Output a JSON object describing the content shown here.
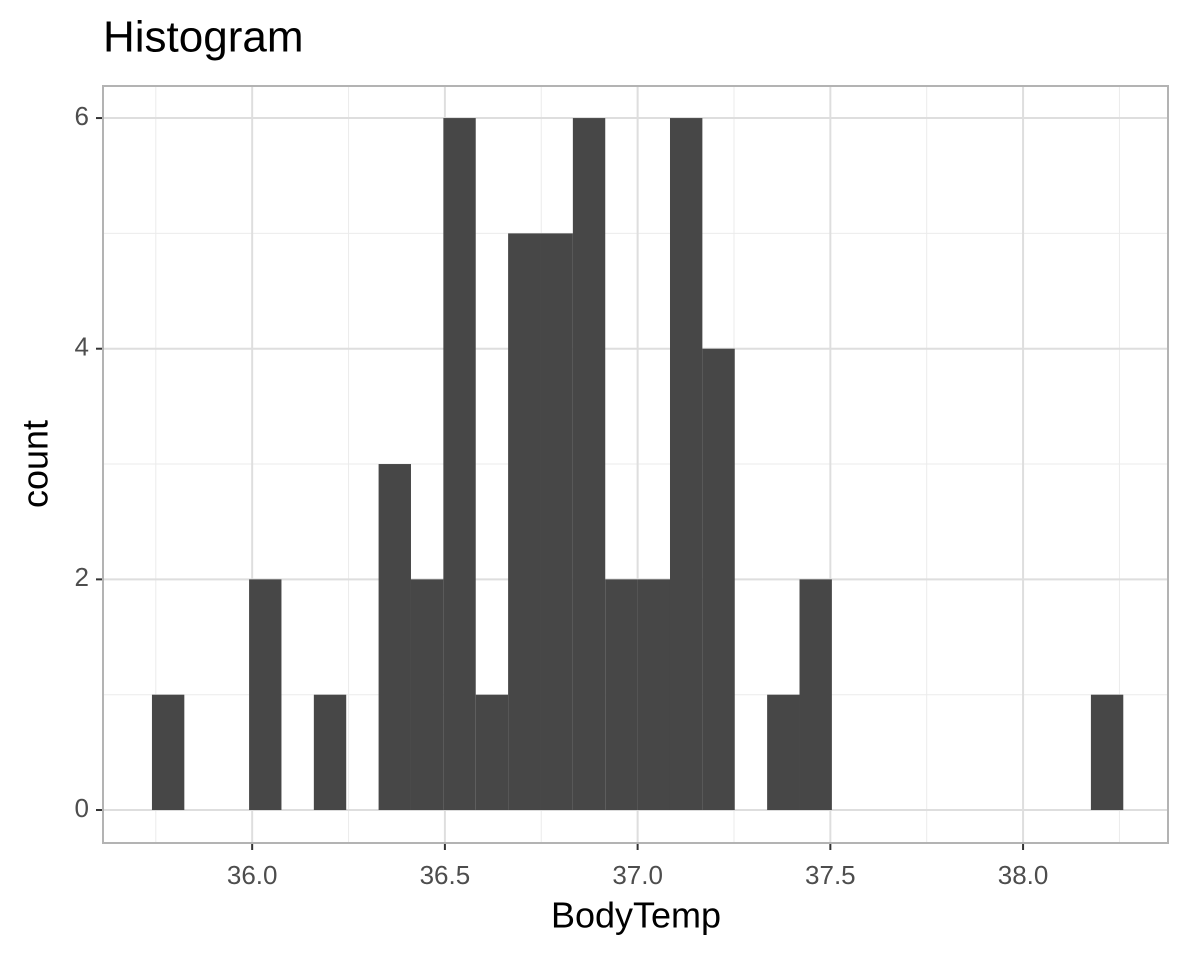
{
  "chart_data": {
    "type": "histogram",
    "title": "Histogram",
    "x_label": "BodyTemp",
    "y_label": "count",
    "bins": [
      35.74,
      35.824,
      35.908,
      35.992,
      36.076,
      36.16,
      36.244,
      36.328,
      36.412,
      36.496,
      36.58,
      36.664,
      36.748,
      36.832,
      36.916,
      37.0,
      37.084,
      37.168,
      37.252,
      37.336,
      37.42,
      37.504,
      37.588,
      37.672,
      37.756,
      37.84,
      37.924,
      38.008,
      38.092,
      38.176,
      38.26
    ],
    "values": [
      1,
      0,
      0,
      2,
      0,
      1,
      0,
      3,
      2,
      6,
      1,
      5,
      5,
      6,
      2,
      2,
      6,
      4,
      0,
      1,
      2,
      0,
      0,
      0,
      0,
      0,
      0,
      0,
      0,
      1
    ],
    "color": "#474747",
    "xlim": [
      35.613,
      38.376
    ],
    "ylim": [
      -0.286,
      6.278
    ],
    "xticks": [
      {
        "value": 36,
        "label": "36.0"
      },
      {
        "value": 36.5,
        "label": "36.5"
      },
      {
        "value": 37,
        "label": "37.0"
      },
      {
        "value": 37.5,
        "label": "37.5"
      },
      {
        "value": 38,
        "label": "38.0"
      }
    ],
    "yticks": [
      0,
      2,
      4,
      6
    ],
    "x_minor_ticks": [
      35.75,
      36.25,
      36.75,
      37.25,
      37.75,
      38.25
    ],
    "y_minor_ticks": [
      1,
      3,
      5
    ],
    "grid": true
  }
}
